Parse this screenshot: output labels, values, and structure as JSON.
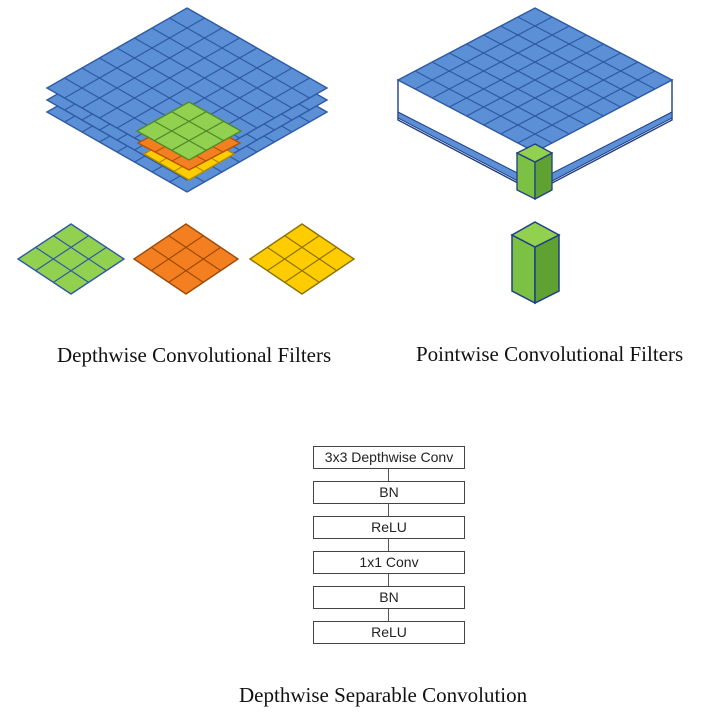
{
  "captions": {
    "depthwise": "Depthwise Convolutional Filters",
    "pointwise": "Pointwise Convolutional Filters",
    "separable": "Depthwise Separable Convolution"
  },
  "flow": {
    "blocks": [
      {
        "label": "3x3 Depthwise Conv"
      },
      {
        "label": "BN"
      },
      {
        "label": "ReLU"
      },
      {
        "label": "1x1 Conv"
      },
      {
        "label": "BN"
      },
      {
        "label": "ReLU"
      }
    ]
  },
  "colors": {
    "input_blue": "#5b8fd6",
    "grid_line": "#2e5aa3",
    "filter_green": "#92d050",
    "filter_orange": "#f47f20",
    "filter_yellow": "#ffcc00",
    "outline": "#1f3f86"
  },
  "grids": {
    "input_cells": 8,
    "depthwise_filter_cells": 3,
    "depthwise_filter_count": 3,
    "input_layers": 3
  }
}
